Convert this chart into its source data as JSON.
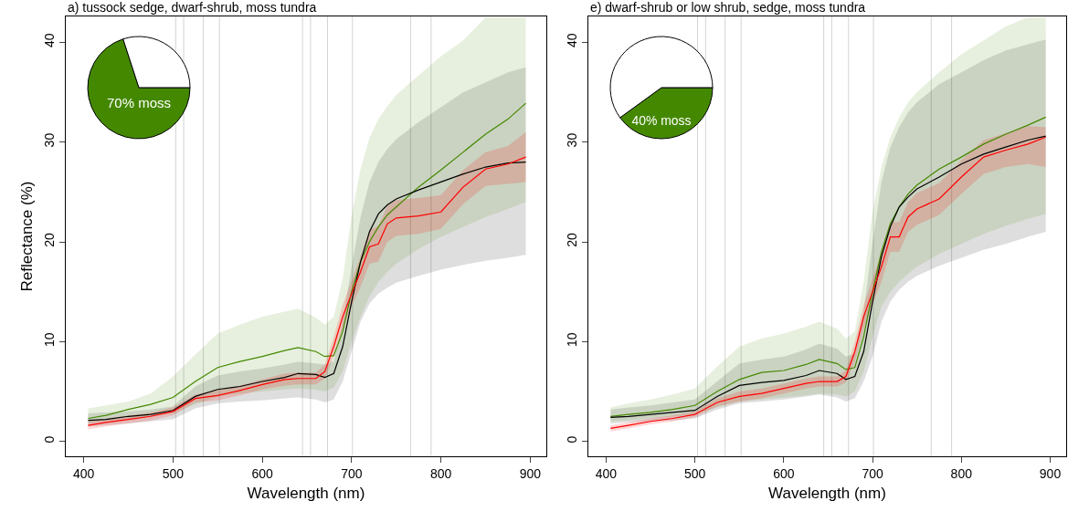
{
  "chart_data": [
    {
      "type": "line",
      "title": "a) tussock sedge, dwarf-shrub, moss tundra",
      "xlabel": "Wavelength (nm)",
      "ylabel": "Reflectance (%)",
      "xlim": [
        380,
        918
      ],
      "ylim": [
        -1.5,
        42.6
      ],
      "xticks": [
        400,
        500,
        600,
        700,
        800,
        900
      ],
      "yticks": [
        0,
        10,
        20,
        30,
        40
      ],
      "grid": false,
      "line_style": "solid",
      "marker": "none",
      "x": [
        405,
        425,
        450,
        475,
        500,
        525,
        550,
        575,
        600,
        625,
        640,
        660,
        670,
        680,
        690,
        700,
        710,
        720,
        730,
        740,
        750,
        775,
        800,
        825,
        850,
        875,
        895
      ],
      "series": [
        {
          "color": "#448800",
          "values": [
            2.3,
            2.6,
            3.2,
            3.7,
            4.4,
            6.0,
            7.4,
            8.0,
            8.5,
            9.1,
            9.4,
            9.0,
            8.5,
            8.6,
            11.0,
            15.0,
            18.0,
            20.0,
            21.5,
            22.7,
            23.5,
            25.5,
            27.2,
            29.0,
            30.8,
            32.3,
            33.9
          ],
          "lower": [
            1.8,
            2.0,
            2.2,
            2.5,
            2.8,
            3.7,
            4.5,
            4.8,
            5.0,
            5.2,
            5.3,
            5.2,
            5.0,
            5.4,
            7.0,
            10.0,
            12.5,
            14.5,
            16.0,
            17.0,
            17.8,
            19.3,
            20.5,
            21.5,
            22.5,
            23.3,
            24.0
          ],
          "upper": [
            3.3,
            3.6,
            4.0,
            4.8,
            6.5,
            8.7,
            10.8,
            11.7,
            12.5,
            13.0,
            13.3,
            12.4,
            11.7,
            12.5,
            16.3,
            22.6,
            27.3,
            30.4,
            32.3,
            33.6,
            34.7,
            36.7,
            38.6,
            40.2,
            42.5,
            42.5,
            42.5
          ]
        },
        {
          "color": "#000000",
          "values": [
            2.1,
            2.2,
            2.5,
            2.7,
            3.1,
            4.5,
            5.2,
            5.5,
            6.0,
            6.4,
            6.8,
            6.7,
            6.4,
            6.8,
            9.5,
            14.0,
            18.0,
            21.0,
            22.8,
            23.7,
            24.3,
            25.2,
            26.0,
            26.8,
            27.5,
            27.9,
            28.0
          ],
          "lower": [
            1.5,
            1.6,
            1.8,
            2.0,
            2.2,
            3.3,
            3.8,
            4.0,
            4.1,
            4.3,
            4.4,
            4.2,
            3.9,
            4.2,
            6.0,
            9.0,
            12.0,
            13.8,
            14.8,
            15.4,
            15.9,
            16.6,
            17.2,
            17.7,
            18.1,
            18.4,
            18.7
          ],
          "upper": [
            2.8,
            2.9,
            3.0,
            3.2,
            3.5,
            5.5,
            6.6,
            7.0,
            7.3,
            7.7,
            8.0,
            7.8,
            7.7,
            8.0,
            12.0,
            17.5,
            22.5,
            26.0,
            28.0,
            29.3,
            30.3,
            32.0,
            33.5,
            35.0,
            36.0,
            37.0,
            37.5
          ]
        },
        {
          "color": "#ff0000",
          "values": [
            1.6,
            1.9,
            2.2,
            2.5,
            3.0,
            4.3,
            4.6,
            5.1,
            5.7,
            6.2,
            6.3,
            6.3,
            7.0,
            9.5,
            12.5,
            14.8,
            17.0,
            19.5,
            19.8,
            21.8,
            22.4,
            22.6,
            23.0,
            25.5,
            27.3,
            27.8,
            28.5
          ],
          "lower": [
            1.2,
            1.5,
            1.8,
            2.1,
            2.6,
            3.9,
            4.1,
            4.6,
            5.2,
            5.6,
            5.7,
            5.7,
            6.3,
            8.5,
            11.3,
            13.5,
            15.5,
            17.8,
            18.0,
            20.0,
            20.6,
            20.8,
            21.3,
            23.8,
            25.6,
            25.8,
            26.0
          ],
          "upper": [
            2.0,
            2.3,
            2.6,
            2.9,
            3.4,
            4.7,
            5.1,
            5.6,
            6.2,
            6.8,
            6.9,
            6.9,
            7.7,
            10.5,
            13.7,
            16.1,
            18.5,
            21.2,
            21.6,
            23.6,
            24.2,
            24.4,
            24.7,
            27.2,
            29.0,
            29.6,
            31.0
          ]
        }
      ],
      "ref_lines": [
        {
          "axis": "x",
          "value": 503,
          "color": "#d3d3d3"
        },
        {
          "axis": "x",
          "value": 512,
          "color": "#d3d3d3"
        },
        {
          "axis": "x",
          "value": 534,
          "color": "#d3d3d3"
        },
        {
          "axis": "x",
          "value": 552,
          "color": "#d3d3d3"
        },
        {
          "axis": "x",
          "value": 645,
          "color": "#d3d3d3"
        },
        {
          "axis": "x",
          "value": 654,
          "color": "#d3d3d3"
        },
        {
          "axis": "x",
          "value": 673,
          "color": "#d3d3d3"
        },
        {
          "axis": "x",
          "value": 701,
          "color": "#d3d3d3"
        },
        {
          "axis": "x",
          "value": 766,
          "color": "#d3d3d3"
        },
        {
          "axis": "x",
          "value": 789,
          "color": "#d3d3d3"
        }
      ]
    },
    {
      "type": "pie",
      "categories": [
        "70% moss",
        null
      ],
      "values": [
        70,
        30
      ],
      "colors": [
        "#448800",
        "#ffffff"
      ]
    },
    {
      "type": "line",
      "title": "e) dwarf-shrub or low shrub, sedge, moss tundra",
      "xlabel": "Wavelength (nm)",
      "xlim": [
        380,
        918
      ],
      "ylim": [
        -1.5,
        42.6
      ],
      "xticks": [
        400,
        500,
        600,
        700,
        800,
        900
      ],
      "yticks": [
        0,
        10,
        20,
        30,
        40
      ],
      "grid": false,
      "line_style": "solid",
      "marker": "none",
      "x": [
        405,
        425,
        450,
        475,
        500,
        525,
        550,
        575,
        600,
        625,
        640,
        660,
        670,
        680,
        690,
        700,
        710,
        720,
        730,
        740,
        750,
        775,
        800,
        825,
        850,
        875,
        895
      ],
      "series": [
        {
          "color": "#448800",
          "values": [
            2.5,
            2.7,
            2.9,
            3.2,
            3.6,
            5.0,
            6.2,
            6.9,
            7.1,
            7.7,
            8.2,
            7.8,
            7.2,
            7.4,
            10.5,
            15.0,
            19.0,
            21.8,
            23.5,
            24.8,
            25.7,
            27.3,
            28.5,
            29.8,
            30.8,
            31.7,
            32.5
          ],
          "lower": [
            2.0,
            2.1,
            2.3,
            2.5,
            2.7,
            3.4,
            4.0,
            4.2,
            4.4,
            4.6,
            4.8,
            4.7,
            4.5,
            5.0,
            7.0,
            10.5,
            13.5,
            15.0,
            16.0,
            16.8,
            17.5,
            18.8,
            19.8,
            20.8,
            21.6,
            22.3,
            22.8
          ],
          "upper": [
            3.4,
            3.8,
            4.2,
            4.7,
            5.3,
            7.5,
            9.5,
            10.3,
            10.8,
            11.5,
            12.0,
            11.3,
            10.3,
            11.0,
            16.0,
            23.0,
            27.5,
            30.5,
            32.5,
            34.0,
            35.0,
            37.0,
            38.8,
            40.2,
            41.6,
            42.5,
            42.5
          ]
        },
        {
          "color": "#000000",
          "values": [
            2.4,
            2.5,
            2.7,
            2.9,
            3.1,
            4.5,
            5.6,
            5.9,
            6.1,
            6.6,
            7.1,
            6.8,
            6.2,
            6.5,
            9.0,
            14.0,
            18.5,
            21.5,
            23.5,
            24.5,
            25.3,
            26.5,
            27.8,
            28.8,
            29.5,
            30.2,
            30.6
          ],
          "lower": [
            1.8,
            1.9,
            2.0,
            2.1,
            2.3,
            3.2,
            3.8,
            4.0,
            4.2,
            4.5,
            4.7,
            4.4,
            4.0,
            4.3,
            6.0,
            8.5,
            12.0,
            14.0,
            15.2,
            16.0,
            16.6,
            17.6,
            18.4,
            19.2,
            19.8,
            20.5,
            21.0
          ],
          "upper": [
            3.2,
            3.4,
            3.6,
            3.9,
            4.2,
            6.0,
            7.8,
            8.2,
            8.5,
            9.2,
            9.8,
            9.3,
            8.5,
            8.8,
            13.0,
            20.0,
            26.0,
            29.5,
            31.5,
            33.0,
            34.0,
            35.8,
            37.0,
            38.2,
            39.2,
            39.8,
            40.3
          ]
        },
        {
          "color": "#ff0000",
          "values": [
            1.3,
            1.6,
            2.0,
            2.3,
            2.7,
            3.9,
            4.5,
            4.8,
            5.3,
            5.8,
            6.0,
            6.0,
            6.5,
            9.0,
            12.5,
            15.0,
            17.5,
            20.5,
            20.5,
            22.5,
            23.3,
            24.3,
            26.5,
            28.5,
            29.2,
            29.8,
            30.5
          ],
          "lower": [
            1.0,
            1.3,
            1.7,
            2.0,
            2.4,
            3.5,
            4.0,
            4.3,
            4.8,
            5.3,
            5.5,
            5.5,
            5.9,
            8.0,
            11.3,
            13.7,
            16.0,
            19.0,
            19.0,
            21.0,
            21.7,
            22.7,
            24.8,
            26.8,
            27.5,
            27.8,
            27.5
          ],
          "upper": [
            1.6,
            1.9,
            2.3,
            2.6,
            3.0,
            4.3,
            5.0,
            5.3,
            5.8,
            6.3,
            6.5,
            6.5,
            7.1,
            10.0,
            13.7,
            16.3,
            19.0,
            22.0,
            22.0,
            24.0,
            24.9,
            25.9,
            28.2,
            30.2,
            30.9,
            31.6,
            31.5
          ]
        }
      ],
      "ref_lines": [
        {
          "axis": "x",
          "value": 503,
          "color": "#d3d3d3"
        },
        {
          "axis": "x",
          "value": 512,
          "color": "#d3d3d3"
        },
        {
          "axis": "x",
          "value": 534,
          "color": "#d3d3d3"
        },
        {
          "axis": "x",
          "value": 552,
          "color": "#d3d3d3"
        },
        {
          "axis": "x",
          "value": 645,
          "color": "#d3d3d3"
        },
        {
          "axis": "x",
          "value": 654,
          "color": "#d3d3d3"
        },
        {
          "axis": "x",
          "value": 673,
          "color": "#d3d3d3"
        },
        {
          "axis": "x",
          "value": 701,
          "color": "#d3d3d3"
        },
        {
          "axis": "x",
          "value": 766,
          "color": "#d3d3d3"
        },
        {
          "axis": "x",
          "value": 789,
          "color": "#d3d3d3"
        }
      ]
    },
    {
      "type": "pie",
      "categories": [
        "40% moss",
        null
      ],
      "values": [
        40,
        60
      ],
      "colors": [
        "#448800",
        "#ffffff"
      ]
    }
  ]
}
